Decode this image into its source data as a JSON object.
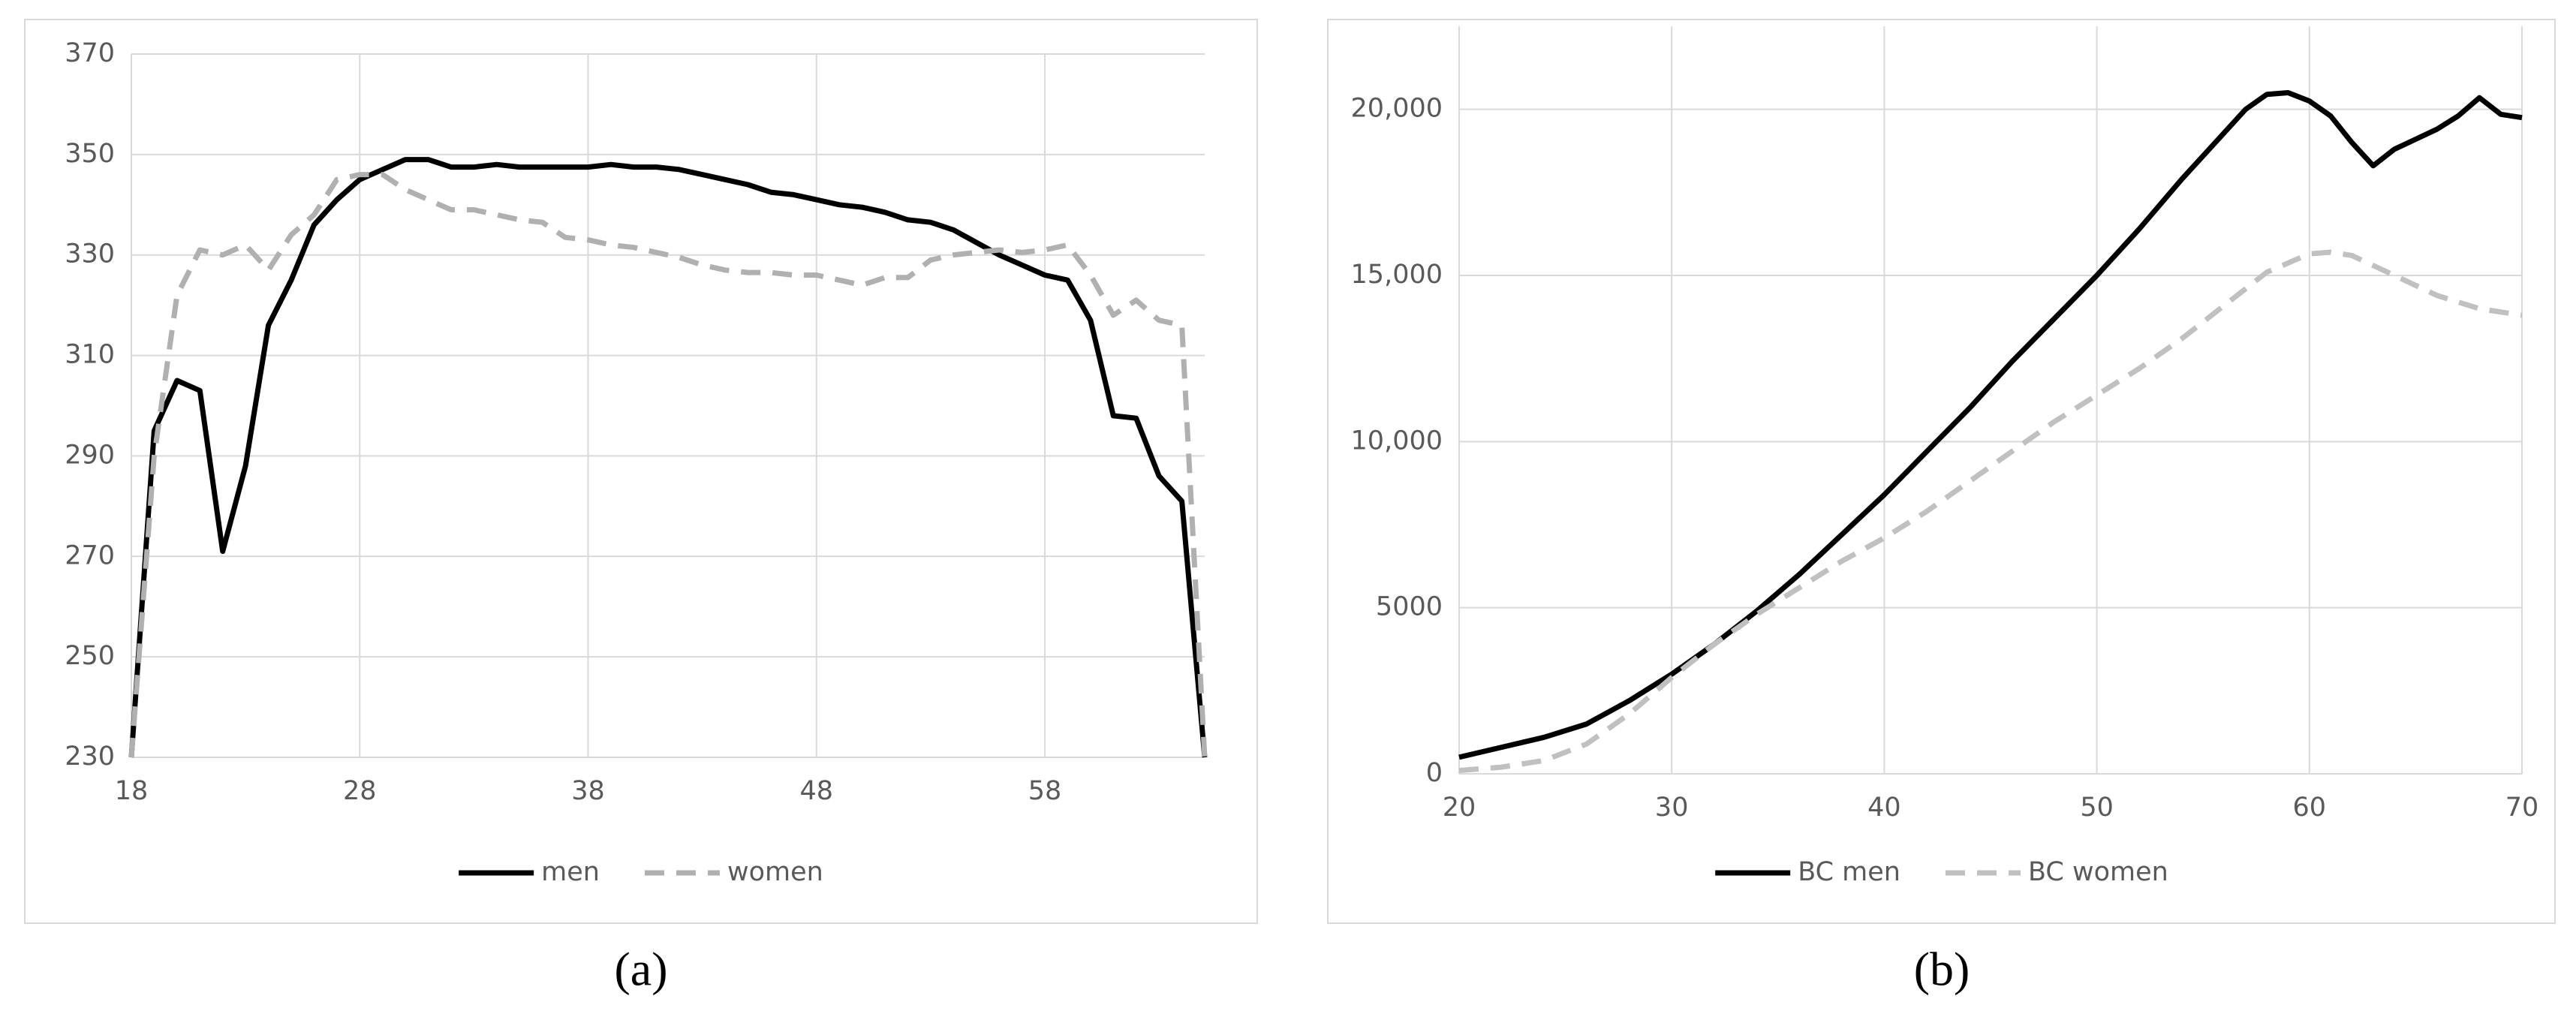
{
  "chart_data": [
    {
      "type": "line",
      "caption": "(a)",
      "xlim": [
        18,
        65
      ],
      "xticks": [
        18,
        28,
        38,
        48,
        58
      ],
      "ylim": [
        230,
        370
      ],
      "yticks": [
        230,
        250,
        270,
        290,
        310,
        330,
        350,
        370
      ],
      "grid": true,
      "legend": "bottom",
      "series": [
        {
          "name": "men",
          "color": "#000000",
          "line_style": "solid",
          "x": [
            18,
            19,
            20,
            21,
            22,
            23,
            24,
            25,
            26,
            27,
            28,
            29,
            30,
            31,
            32,
            33,
            34,
            35,
            36,
            37,
            38,
            39,
            40,
            41,
            42,
            43,
            44,
            45,
            46,
            47,
            48,
            49,
            50,
            51,
            52,
            53,
            54,
            55,
            56,
            57,
            58,
            59,
            60,
            61,
            62,
            63,
            64,
            65
          ],
          "values": [
            230,
            295,
            305,
            303,
            271,
            288,
            316,
            325,
            336,
            341,
            345,
            347,
            349,
            349,
            347.5,
            347.5,
            348,
            347.5,
            347.5,
            347.5,
            347.5,
            348,
            347.5,
            347.5,
            347,
            346,
            345,
            344,
            342.5,
            342,
            341,
            340,
            339.5,
            338.5,
            337,
            336.5,
            335,
            332.5,
            330,
            328,
            326,
            325,
            317,
            298,
            297.5,
            286,
            281,
            230
          ]
        },
        {
          "name": "women",
          "color": "#b0b0b0",
          "line_style": "dashed",
          "x": [
            18,
            19,
            20,
            21,
            22,
            23,
            24,
            25,
            26,
            27,
            28,
            29,
            30,
            31,
            32,
            33,
            34,
            35,
            36,
            37,
            38,
            39,
            40,
            41,
            42,
            43,
            44,
            45,
            46,
            47,
            48,
            49,
            50,
            51,
            52,
            53,
            54,
            55,
            56,
            57,
            58,
            59,
            60,
            61,
            62,
            63,
            64,
            65
          ],
          "values": [
            230,
            290,
            322,
            331,
            330,
            332,
            327,
            334,
            338,
            345,
            346,
            346,
            343,
            341,
            339,
            339,
            338,
            337,
            336.5,
            333.5,
            333,
            332,
            331.5,
            330.5,
            329.5,
            328,
            327,
            326.5,
            326.5,
            326,
            326,
            325,
            324,
            325.5,
            325.5,
            329,
            330,
            330.5,
            331,
            330.5,
            331,
            332,
            326,
            318,
            321,
            317,
            316,
            230
          ]
        }
      ]
    },
    {
      "type": "line",
      "caption": "(b)",
      "xlim": [
        20,
        70
      ],
      "xticks": [
        20,
        30,
        40,
        50,
        60,
        70
      ],
      "ylim": [
        0,
        22500
      ],
      "yticks": [
        0,
        5000,
        {
          "value": 10000,
          "label": "10,000"
        },
        {
          "value": 15000,
          "label": "15,000"
        },
        {
          "value": 20000,
          "label": "20,000"
        }
      ],
      "grid": true,
      "legend": "bottom",
      "series": [
        {
          "name": "BC men",
          "color": "#000000",
          "line_style": "solid",
          "x": [
            20,
            22,
            24,
            26,
            28,
            30,
            32,
            34,
            36,
            38,
            40,
            42,
            44,
            46,
            48,
            50,
            52,
            54,
            56,
            57,
            58,
            59,
            60,
            61,
            62,
            63,
            64,
            65,
            66,
            67,
            68,
            69,
            70
          ],
          "values": [
            500,
            800,
            1100,
            1500,
            2200,
            3000,
            3900,
            4900,
            6000,
            7200,
            8400,
            9700,
            11000,
            12400,
            13700,
            15000,
            16400,
            17900,
            19300,
            20000,
            20450,
            20500,
            20250,
            19800,
            19000,
            18300,
            18800,
            19100,
            19400,
            19800,
            20350,
            19850,
            19750
          ]
        },
        {
          "name": "BC women",
          "color": "#c0c0c0",
          "line_style": "dashed",
          "x": [
            20,
            22,
            24,
            26,
            28,
            30,
            32,
            34,
            36,
            38,
            40,
            42,
            44,
            46,
            48,
            50,
            52,
            54,
            56,
            58,
            60,
            61,
            62,
            64,
            66,
            68,
            70
          ],
          "values": [
            100,
            200,
            400,
            900,
            1800,
            2900,
            3900,
            4800,
            5600,
            6400,
            7100,
            7900,
            8800,
            9700,
            10600,
            11400,
            12200,
            13100,
            14100,
            15100,
            15650,
            15700,
            15600,
            15000,
            14400,
            14000,
            13800
          ]
        }
      ]
    }
  ]
}
